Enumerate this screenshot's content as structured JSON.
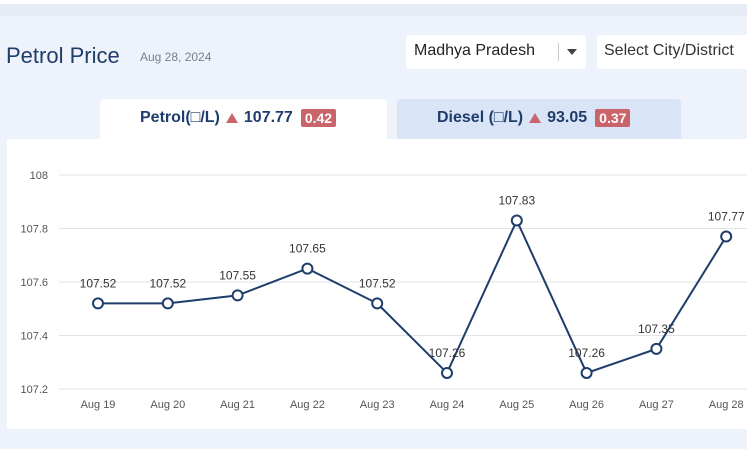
{
  "header": {
    "title": "Petrol Price",
    "date": "Aug 28, 2024"
  },
  "filters": {
    "state": "Madhya Pradesh",
    "city_placeholder": "Select City/District"
  },
  "tabs": [
    {
      "label": "Petrol(□/L)",
      "price": "107.77",
      "change": "0.42",
      "active": true
    },
    {
      "label": "Diesel (□/L)",
      "price": "93.05",
      "change": "0.37",
      "active": false
    }
  ],
  "colors": {
    "line": "#1f3d6b",
    "up_badge": "#c9646a",
    "active_tab": "#ffffff",
    "inactive_tab": "#d9e4f6",
    "background": "#eef2fb"
  },
  "chart_data": {
    "type": "line",
    "title": "",
    "xlabel": "",
    "ylabel": "",
    "categories": [
      "Aug 19",
      "Aug 20",
      "Aug 21",
      "Aug 22",
      "Aug 23",
      "Aug 24",
      "Aug 25",
      "Aug 26",
      "Aug 27",
      "Aug 28"
    ],
    "values": [
      107.52,
      107.52,
      107.55,
      107.65,
      107.52,
      107.26,
      107.83,
      107.26,
      107.35,
      107.77
    ],
    "data_labels": [
      "107.52",
      "107.52",
      "107.55",
      "107.65",
      "107.52",
      "107.26",
      "107.83",
      "107.26",
      "107.35",
      "107.77"
    ],
    "ylim": [
      107.2,
      108
    ],
    "yticks": [
      "107.2",
      "107.4",
      "107.6",
      "107.8",
      "108"
    ],
    "grid": true
  }
}
